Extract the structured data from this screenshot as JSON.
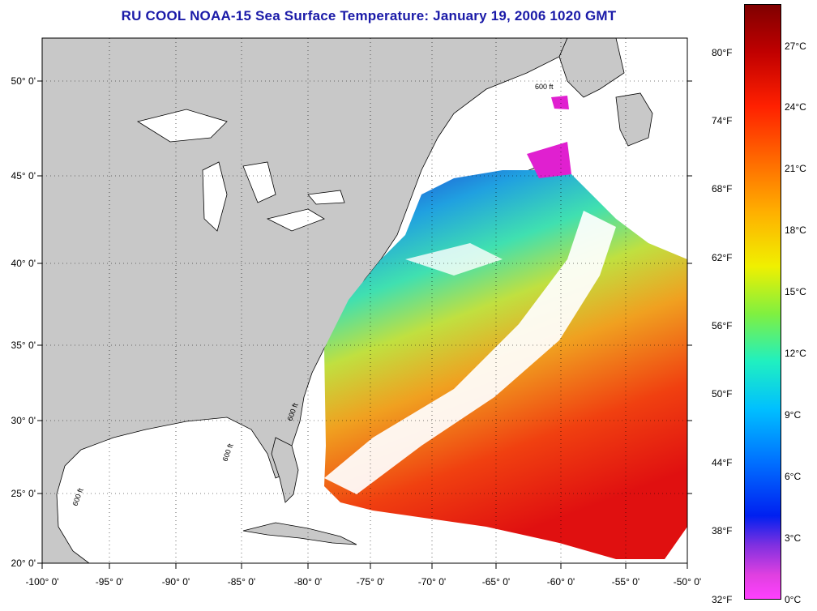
{
  "title": "RU COOL  NOAA-15  Sea Surface Temperature:  January 19, 2006 1020 GMT",
  "colors": {
    "land": "#c8c8c8",
    "ocean_cloud": "#ffffff",
    "title": "#1a1aa8"
  },
  "map": {
    "lat_labels": [
      "50° 0'",
      "45° 0'",
      "40° 0'",
      "35° 0'",
      "30° 0'",
      "25° 0'",
      "20° 0'"
    ],
    "lon_labels": [
      "-100° 0'",
      "-95° 0'",
      "-90° 0'",
      "-85° 0'",
      "-80° 0'",
      "-75° 0'",
      "-70° 0'",
      "-65° 0'",
      "-60° 0'",
      "-55° 0'",
      "-50° 0'"
    ],
    "contour_label": "600 ft"
  },
  "colorbar": {
    "fahrenheit": [
      "80°F",
      "74°F",
      "68°F",
      "62°F",
      "56°F",
      "50°F",
      "44°F",
      "38°F",
      "32°F"
    ],
    "celsius": [
      "27°C",
      "24°C",
      "21°C",
      "18°C",
      "15°C",
      "12°C",
      "9°C",
      "6°C",
      "3°C",
      "0°C"
    ]
  }
}
